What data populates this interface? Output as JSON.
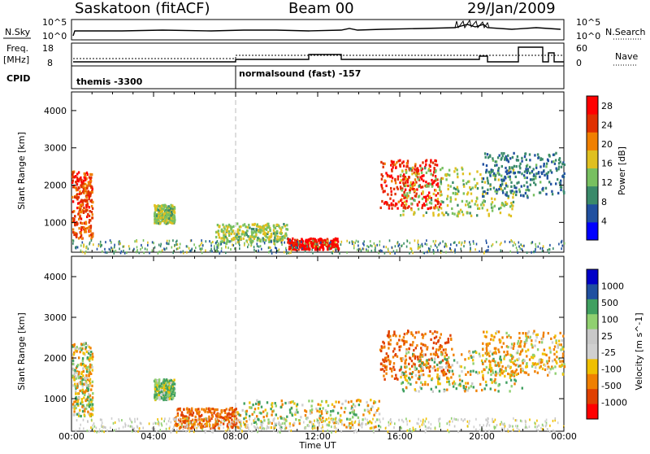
{
  "header": {
    "station": "Saskatoon (fitACF)",
    "beam": "Beam 00",
    "date": "29/Jan/2009"
  },
  "top_panels": {
    "nsky_label": "N.Sky",
    "nsky_ticks": [
      "10^5",
      "10^0"
    ],
    "nsearch_label": "N.Search",
    "nsearch_ticks": [
      "10^5",
      "10^0"
    ],
    "freq_label": "Freq.",
    "freq_unit": "[MHz]",
    "freq_ticks": [
      "18",
      "8"
    ],
    "nave_label": "Nave",
    "nave_ticks": [
      "60",
      "0"
    ],
    "cpid_label": "CPID",
    "cpid_segments": [
      {
        "label": "themis -3300",
        "start_hour": 0
      },
      {
        "label": "normalsound (fast) -157",
        "start_hour": 8
      }
    ]
  },
  "colors": {
    "power_scale": [
      "#0000ff",
      "#2050a0",
      "#3a8a6a",
      "#78c060",
      "#e0c020",
      "#f08000",
      "#e03000",
      "#ff0000"
    ],
    "velocity_scale": [
      "#0000c8",
      "#2050a0",
      "#40a060",
      "#90d070",
      "#c8c8c8",
      "#d0d0d0",
      "#f0c000",
      "#f08000",
      "#e04000",
      "#ff0000"
    ]
  },
  "chart_data": [
    {
      "type": "heatmap",
      "name": "power",
      "x_unit": "UT",
      "xlim": [
        "00:00",
        "24:00"
      ],
      "ylabel": "Slant Range [km]",
      "y_ticks": [
        1000,
        2000,
        3000,
        4000
      ],
      "ylim": [
        200,
        4500
      ],
      "colorbar_label": "Power [dB]",
      "colorbar_ticks": [
        4,
        8,
        12,
        16,
        20,
        24,
        28
      ],
      "colorbar_range": [
        0,
        30
      ],
      "regions": [
        {
          "t0": 0.0,
          "t1": 1.0,
          "r0": 600,
          "r1": 2400,
          "value": 24
        },
        {
          "t0": 4.0,
          "t1": 5.0,
          "r0": 1000,
          "r1": 1500,
          "value": 14
        },
        {
          "t0": 7.0,
          "t1": 10.5,
          "r0": 500,
          "r1": 1000,
          "value": 14
        },
        {
          "t0": 10.5,
          "t1": 13.0,
          "r0": 300,
          "r1": 600,
          "value": 28
        },
        {
          "t0": 15.0,
          "t1": 18.0,
          "r0": 1400,
          "r1": 2700,
          "value": 26
        },
        {
          "t0": 16.0,
          "t1": 21.5,
          "r0": 1200,
          "r1": 2500,
          "value": 14
        },
        {
          "t0": 20.0,
          "t1": 24.0,
          "r0": 1700,
          "r1": 2900,
          "value": 8
        }
      ]
    },
    {
      "type": "heatmap",
      "name": "velocity",
      "x_unit": "UT",
      "xlim": [
        "00:00",
        "24:00"
      ],
      "xlabel": "Time UT",
      "x_ticks": [
        "00:00",
        "04:00",
        "08:00",
        "12:00",
        "16:00",
        "20:00",
        "00:00"
      ],
      "ylabel": "Slant Range [km]",
      "y_ticks": [
        1000,
        2000,
        3000,
        4000
      ],
      "ylim": [
        200,
        4500
      ],
      "colorbar_label": "Velocity [m s^-1]",
      "colorbar_ticks": [
        "1000",
        "500",
        "100",
        "25",
        "-25",
        "-100",
        "-500",
        "-1000"
      ],
      "regions": [
        {
          "t0": 0.0,
          "t1": 1.0,
          "r0": 600,
          "r1": 2400,
          "value": -25
        },
        {
          "t0": 4.0,
          "t1": 5.0,
          "r0": 1000,
          "r1": 1500,
          "value": 100
        },
        {
          "t0": 5.0,
          "t1": 8.0,
          "r0": 300,
          "r1": 800,
          "value": -500
        },
        {
          "t0": 8.0,
          "t1": 15.0,
          "r0": 300,
          "r1": 1000,
          "value": -25
        },
        {
          "t0": 15.0,
          "t1": 18.5,
          "r0": 1500,
          "r1": 2700,
          "value": -500
        },
        {
          "t0": 16.0,
          "t1": 22.0,
          "r0": 1200,
          "r1": 2200,
          "value": 25
        },
        {
          "t0": 20.0,
          "t1": 24.0,
          "r0": 1600,
          "r1": 2700,
          "value": -100
        }
      ]
    }
  ]
}
